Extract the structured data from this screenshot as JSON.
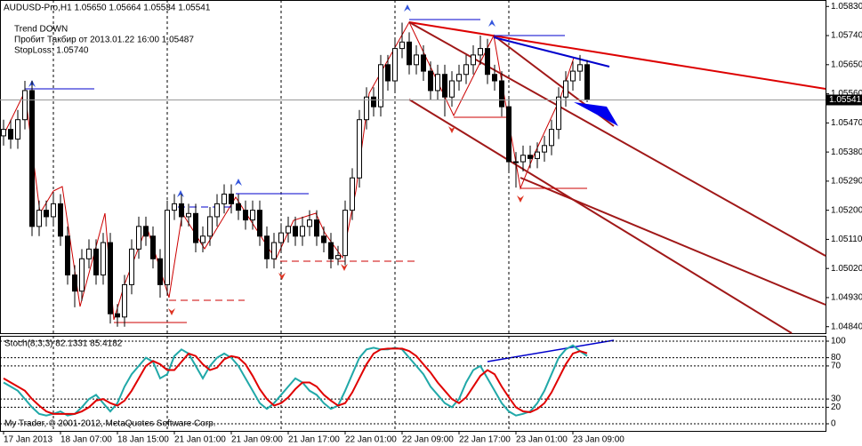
{
  "chart_data": [
    {
      "type": "candlestick",
      "title": "AUDUSD-Pro,H1  1.05650 1.05664 1.05534 1.05541",
      "annotations": [
        "Trend DOWN",
        "Пробит Такбир от 2013.01.22 16:00 1.05487",
        "StopLoss: 1.05740"
      ],
      "footer": "My Trader, © 2001-2012, MetaQuotes Software Corp.",
      "categories": [
        "17 Jan 2013",
        null,
        null,
        null,
        null,
        null,
        null,
        null,
        "18 Jan 07:00",
        null,
        null,
        null,
        null,
        null,
        null,
        null,
        "18 Jan 15:00",
        null,
        null,
        null,
        null,
        null,
        null,
        null,
        "21 Jan 01:00",
        null,
        null,
        null,
        null,
        null,
        null,
        null,
        "21 Jan 09:00",
        null,
        null,
        null,
        null,
        null,
        null,
        null,
        "21 Jan 17:00",
        null,
        null,
        null,
        null,
        null,
        null,
        null,
        "22 Jan 01:00",
        null,
        null,
        null,
        null,
        null,
        null,
        null,
        "22 Jan 09:00",
        null,
        null,
        null,
        null,
        null,
        null,
        null,
        "22 Jan 17:00",
        null,
        null,
        null,
        null,
        null,
        null,
        null,
        "23 Jan 01:00",
        null,
        null,
        null,
        null,
        null,
        null,
        null,
        "23 Jan 09:00",
        null,
        null
      ],
      "open": [
        1.0543,
        1.0545,
        1.0542,
        1.0548,
        1.0557,
        1.0515,
        1.052,
        1.0518,
        1.0522,
        1.0512,
        1.05,
        1.0495,
        1.0505,
        1.0508,
        1.05,
        1.051,
        1.0488,
        1.0487,
        1.0497,
        1.0508,
        1.0515,
        1.0512,
        1.0505,
        1.0497,
        1.052,
        1.0522,
        1.0518,
        1.0519,
        1.051,
        1.0512,
        1.0518,
        1.0522,
        1.0525,
        1.0522,
        1.052,
        1.0517,
        1.052,
        1.0512,
        1.0505,
        1.051,
        1.0513,
        1.0515,
        1.0512,
        1.0515,
        1.0517,
        1.0512,
        1.051,
        1.0505,
        1.0506,
        1.052,
        1.053,
        1.0548,
        1.0555,
        1.0552,
        1.0565,
        1.056,
        1.057,
        1.0572,
        1.0565,
        1.0568,
        1.0563,
        1.0557,
        1.0562,
        1.0555,
        1.056,
        1.0562,
        1.0565,
        1.0568,
        1.057,
        1.0562,
        1.056,
        1.0552,
        1.0535,
        1.0535,
        1.0537,
        1.0536,
        1.0538,
        1.054,
        1.0545,
        1.0555,
        1.056,
        1.0563,
        1.0565
      ],
      "high": [
        1.0548,
        1.0548,
        1.0551,
        1.056,
        1.056,
        1.0523,
        1.0523,
        1.0525,
        1.0525,
        1.0515,
        1.0503,
        1.0508,
        1.0511,
        1.0511,
        1.0513,
        1.0513,
        1.0491,
        1.05,
        1.0511,
        1.0518,
        1.0518,
        1.0515,
        1.0508,
        1.0523,
        1.0525,
        1.0525,
        1.0522,
        1.0522,
        1.0515,
        1.0521,
        1.0525,
        1.0528,
        1.0528,
        1.0525,
        1.0523,
        1.0523,
        1.0523,
        1.0515,
        1.0513,
        1.0516,
        1.0518,
        1.0518,
        1.0518,
        1.052,
        1.052,
        1.0515,
        1.0513,
        1.0509,
        1.0523,
        1.0533,
        1.0551,
        1.0558,
        1.0558,
        1.0568,
        1.0568,
        1.0573,
        1.0578,
        1.0575,
        1.0571,
        1.0571,
        1.0566,
        1.0565,
        1.0565,
        1.0563,
        1.0565,
        1.0568,
        1.0571,
        1.0574,
        1.0573,
        1.0565,
        1.0563,
        1.0555,
        1.0538,
        1.054,
        1.054,
        1.0541,
        1.0543,
        1.0548,
        1.0558,
        1.0563,
        1.0566,
        1.0568,
        1.05664
      ],
      "low": [
        1.054,
        1.0539,
        1.0539,
        1.0545,
        1.0512,
        1.0512,
        1.0515,
        1.0515,
        1.0509,
        1.0497,
        1.049,
        1.0492,
        1.0502,
        1.0497,
        1.0497,
        1.0485,
        1.0484,
        1.0484,
        1.0494,
        1.0505,
        1.0509,
        1.0502,
        1.0493,
        1.0494,
        1.0517,
        1.0515,
        1.0515,
        1.0507,
        1.0507,
        1.0509,
        1.0515,
        1.0519,
        1.0519,
        1.0517,
        1.0514,
        1.0514,
        1.0509,
        1.0502,
        1.0502,
        1.0507,
        1.051,
        1.0509,
        1.0509,
        1.0512,
        1.0509,
        1.0507,
        1.0502,
        1.0503,
        1.0503,
        1.0517,
        1.0527,
        1.0545,
        1.0549,
        1.0549,
        1.0557,
        1.0557,
        1.0567,
        1.0562,
        1.0562,
        1.056,
        1.0554,
        1.0554,
        1.0549,
        1.0552,
        1.0557,
        1.0559,
        1.0562,
        1.0565,
        1.0559,
        1.0557,
        1.0549,
        1.0532,
        1.0527,
        1.0532,
        1.0533,
        1.0533,
        1.0535,
        1.0537,
        1.0542,
        1.0552,
        1.0557,
        1.056,
        1.05534
      ],
      "close": [
        1.0545,
        1.0542,
        1.0548,
        1.0557,
        1.0515,
        1.052,
        1.0518,
        1.0522,
        1.0512,
        1.05,
        1.0495,
        1.0505,
        1.0508,
        1.05,
        1.051,
        1.0488,
        1.0487,
        1.0497,
        1.0508,
        1.0515,
        1.0512,
        1.0505,
        1.0497,
        1.052,
        1.0522,
        1.0518,
        1.0519,
        1.051,
        1.0512,
        1.0518,
        1.0522,
        1.0525,
        1.0522,
        1.052,
        1.0517,
        1.052,
        1.0512,
        1.0505,
        1.051,
        1.0513,
        1.0515,
        1.0512,
        1.0515,
        1.0517,
        1.0512,
        1.051,
        1.0505,
        1.0506,
        1.052,
        1.053,
        1.0548,
        1.0555,
        1.0552,
        1.0565,
        1.056,
        1.057,
        1.0572,
        1.0565,
        1.0568,
        1.0563,
        1.0557,
        1.0562,
        1.0555,
        1.056,
        1.0562,
        1.0565,
        1.0568,
        1.057,
        1.0562,
        1.056,
        1.0552,
        1.0535,
        1.0535,
        1.0537,
        1.0536,
        1.0538,
        1.054,
        1.0545,
        1.0555,
        1.056,
        1.0563,
        1.0565,
        1.05541
      ],
      "last_price": 1.05541,
      "up_color": "#ffffff",
      "down_color": "#000000",
      "ylim": [
        1.0482,
        1.0585
      ],
      "yticks": [
        {
          "value": 1.0583,
          "label": "1.05830"
        },
        {
          "value": 1.0574,
          "label": "1.05740"
        },
        {
          "value": 1.0565,
          "label": "1.05650"
        },
        {
          "value": 1.0556,
          "label": "1.05560"
        },
        {
          "value": 1.0547,
          "label": "1.05470"
        },
        {
          "value": 1.0538,
          "label": "1.05380"
        },
        {
          "value": 1.0529,
          "label": "1.05290"
        },
        {
          "value": 1.052,
          "label": "1.05200"
        },
        {
          "value": 1.0511,
          "label": "1.05110"
        },
        {
          "value": 1.0502,
          "label": "1.05020"
        },
        {
          "value": 1.0493,
          "label": "1.04930"
        },
        {
          "value": 1.0484,
          "label": "1.04840"
        }
      ]
    },
    {
      "type": "line",
      "title": "Stoch(8,3,3) 82.1331 85.4182",
      "series": [
        {
          "color": "#20a8a8",
          "values": [
            50,
            45,
            40,
            30,
            20,
            12,
            10,
            12,
            15,
            10,
            12,
            20,
            30,
            35,
            25,
            15,
            25,
            45,
            60,
            70,
            80,
            75,
            55,
            60,
            82,
            90,
            85,
            70,
            55,
            70,
            80,
            85,
            80,
            70,
            55,
            40,
            25,
            18,
            25,
            35,
            45,
            55,
            50,
            40,
            35,
            25,
            18,
            22,
            40,
            60,
            80,
            90,
            92,
            90,
            90,
            92,
            90,
            80,
            70,
            60,
            45,
            35,
            25,
            20,
            30,
            50,
            65,
            70,
            55,
            40,
            25,
            15,
            10,
            12,
            15,
            25,
            40,
            60,
            80,
            90,
            95,
            88,
            82.1331
          ]
        },
        {
          "color": "#e00000",
          "values": [
            55,
            50,
            45,
            40,
            30,
            22,
            15,
            12,
            12,
            12,
            12,
            15,
            20,
            28,
            30,
            25,
            22,
            28,
            40,
            55,
            70,
            76,
            72,
            65,
            65,
            75,
            85,
            82,
            72,
            65,
            68,
            78,
            82,
            80,
            72,
            58,
            42,
            30,
            22,
            25,
            32,
            42,
            50,
            50,
            45,
            35,
            28,
            22,
            25,
            38,
            55,
            72,
            85,
            90,
            91,
            91,
            91,
            88,
            82,
            72,
            62,
            50,
            40,
            30,
            25,
            32,
            45,
            58,
            65,
            60,
            45,
            32,
            20,
            15,
            14,
            18,
            25,
            38,
            55,
            72,
            85,
            88,
            85.4182
          ]
        }
      ],
      "ylim": [
        0,
        100
      ],
      "yticks": [
        100,
        80,
        70,
        30,
        20,
        0
      ],
      "grid": true
    }
  ]
}
